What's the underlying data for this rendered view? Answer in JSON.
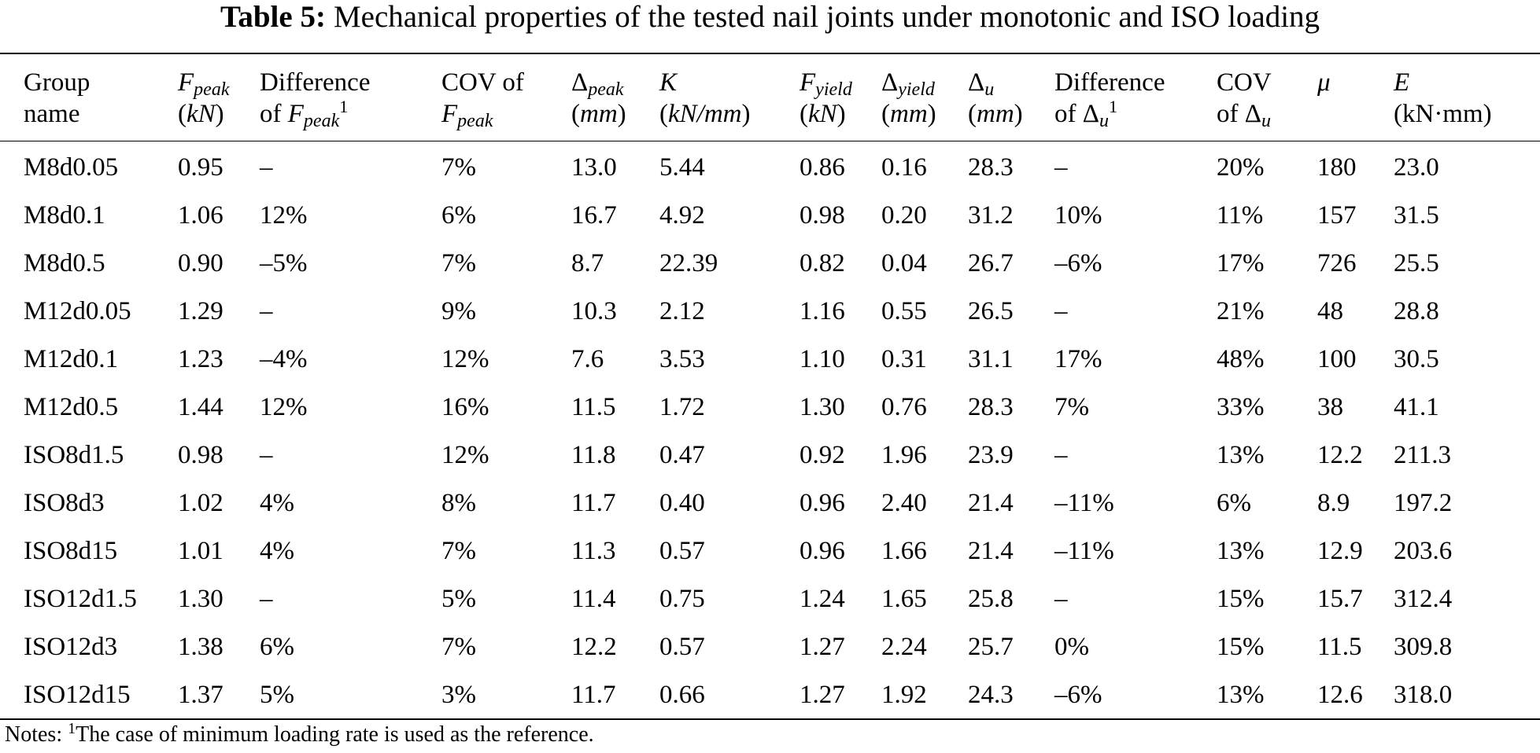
{
  "caption": {
    "label": "Table 5:",
    "text": "Mechanical properties of the tested nail joints under monotonic and ISO loading"
  },
  "headers": {
    "group": {
      "line1": "Group",
      "line2": "name"
    },
    "fpeak": {
      "sym": "F",
      "sub": "peak",
      "unit": "kN"
    },
    "diff_fpeak": {
      "line1": "Difference",
      "pre": "of ",
      "sym": "F",
      "sub": "peak",
      "sup": "1"
    },
    "cov_fpeak": {
      "line1": "COV of",
      "sym": "F",
      "sub": "peak"
    },
    "dpeak": {
      "sym": "Δ",
      "sub": "peak",
      "unit": "mm"
    },
    "k": {
      "sym": "K",
      "unit": "kN/mm"
    },
    "fyield": {
      "sym": "F",
      "sub": "yield",
      "unit": "kN"
    },
    "dyield": {
      "sym": "Δ",
      "sub": "yield",
      "unit": "mm"
    },
    "du": {
      "sym": "Δ",
      "sub": "u",
      "unit": "mm"
    },
    "diff_du": {
      "line1": "Difference",
      "pre": "of ",
      "sym": "Δ",
      "sub": "u",
      "sup": "1"
    },
    "cov_du": {
      "line1": "COV",
      "pre": "of ",
      "sym": "Δ",
      "sub": "u"
    },
    "mu": {
      "sym": "μ"
    },
    "e": {
      "sym": "E",
      "unit": "(kN·mm)"
    }
  },
  "rows": [
    [
      "M8d0.05",
      "0.95",
      "–",
      "7%",
      "13.0",
      "5.44",
      "0.86",
      "0.16",
      "28.3",
      "–",
      "20%",
      "180",
      "23.0"
    ],
    [
      "M8d0.1",
      "1.06",
      "12%",
      "6%",
      "16.7",
      "4.92",
      "0.98",
      "0.20",
      "31.2",
      "10%",
      "11%",
      "157",
      "31.5"
    ],
    [
      "M8d0.5",
      "0.90",
      "–5%",
      "7%",
      "8.7",
      "22.39",
      "0.82",
      "0.04",
      "26.7",
      "–6%",
      "17%",
      "726",
      "25.5"
    ],
    [
      "M12d0.05",
      "1.29",
      "–",
      "9%",
      "10.3",
      "2.12",
      "1.16",
      "0.55",
      "26.5",
      "–",
      "21%",
      "48",
      "28.8"
    ],
    [
      "M12d0.1",
      "1.23",
      "–4%",
      "12%",
      "7.6",
      "3.53",
      "1.10",
      "0.31",
      "31.1",
      "17%",
      "48%",
      "100",
      "30.5"
    ],
    [
      "M12d0.5",
      "1.44",
      "12%",
      "16%",
      "11.5",
      "1.72",
      "1.30",
      "0.76",
      "28.3",
      "7%",
      "33%",
      "38",
      "41.1"
    ],
    [
      "ISO8d1.5",
      "0.98",
      "–",
      "12%",
      "11.8",
      "0.47",
      "0.92",
      "1.96",
      "23.9",
      "–",
      "13%",
      "12.2",
      "211.3"
    ],
    [
      "ISO8d3",
      "1.02",
      "4%",
      "8%",
      "11.7",
      "0.40",
      "0.96",
      "2.40",
      "21.4",
      "–11%",
      "6%",
      "8.9",
      "197.2"
    ],
    [
      "ISO8d15",
      "1.01",
      "4%",
      "7%",
      "11.3",
      "0.57",
      "0.96",
      "1.66",
      "21.4",
      "–11%",
      "13%",
      "12.9",
      "203.6"
    ],
    [
      "ISO12d1.5",
      "1.30",
      "–",
      "5%",
      "11.4",
      "0.75",
      "1.24",
      "1.65",
      "25.8",
      "–",
      "15%",
      "15.7",
      "312.4"
    ],
    [
      "ISO12d3",
      "1.38",
      "6%",
      "7%",
      "12.2",
      "0.57",
      "1.27",
      "2.24",
      "25.7",
      "0%",
      "15%",
      "11.5",
      "309.8"
    ],
    [
      "ISO12d15",
      "1.37",
      "5%",
      "3%",
      "11.7",
      "0.66",
      "1.27",
      "1.92",
      "24.3",
      "–6%",
      "13%",
      "12.6",
      "318.0"
    ]
  ],
  "notes": {
    "prefix": "Notes: ",
    "sup": "1",
    "text": "The case of minimum loading rate is used as the reference."
  }
}
